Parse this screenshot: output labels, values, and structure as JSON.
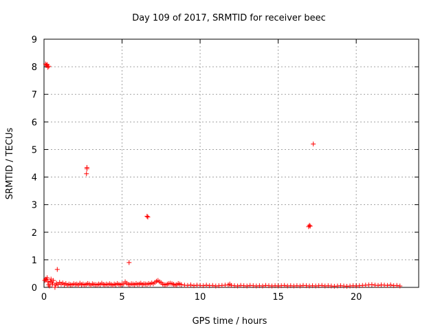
{
  "chart_data": {
    "type": "scatter",
    "title": "Day 109 of 2017, SRMTID for receiver beec",
    "xlabel": "GPS time / hours",
    "ylabel": "SRMTID / TECUs",
    "xlim": [
      0,
      24
    ],
    "ylim": [
      0,
      9
    ],
    "xticks": [
      0,
      5,
      10,
      15,
      20
    ],
    "yticks": [
      0,
      1,
      2,
      3,
      4,
      5,
      6,
      7,
      8,
      9
    ],
    "grid": true,
    "marker": "+",
    "color": "#ff0000",
    "series": [
      {
        "name": "SRMTID",
        "points": [
          [
            0.05,
            0.25
          ],
          [
            0.1,
            0.3
          ],
          [
            0.15,
            0.28
          ],
          [
            0.2,
            0.35
          ],
          [
            0.25,
            0.2
          ],
          [
            0.3,
            0.1
          ],
          [
            0.35,
            0.05
          ],
          [
            0.4,
            0.22
          ],
          [
            0.45,
            0.3
          ],
          [
            0.5,
            0.18
          ],
          [
            0.55,
            0.12
          ],
          [
            0.6,
            0.25
          ],
          [
            0.7,
            0.0
          ],
          [
            0.75,
            0.08
          ],
          [
            0.8,
            0.15
          ],
          [
            0.9,
            0.1
          ],
          [
            1.0,
            0.18
          ],
          [
            1.1,
            0.12
          ],
          [
            1.2,
            0.16
          ],
          [
            1.3,
            0.1
          ],
          [
            1.4,
            0.14
          ],
          [
            1.5,
            0.08
          ],
          [
            1.6,
            0.12
          ],
          [
            1.7,
            0.1
          ],
          [
            1.8,
            0.09
          ],
          [
            1.9,
            0.13
          ],
          [
            2.0,
            0.11
          ],
          [
            2.1,
            0.12
          ],
          [
            2.2,
            0.08
          ],
          [
            2.3,
            0.15
          ],
          [
            2.4,
            0.1
          ],
          [
            2.5,
            0.12
          ],
          [
            2.6,
            0.09
          ],
          [
            2.7,
            0.11
          ],
          [
            2.8,
            0.14
          ],
          [
            2.9,
            0.12
          ],
          [
            3.0,
            0.08
          ],
          [
            3.1,
            0.13
          ],
          [
            3.2,
            0.11
          ],
          [
            3.3,
            0.1
          ],
          [
            3.4,
            0.09
          ],
          [
            3.5,
            0.12
          ],
          [
            3.6,
            0.1
          ],
          [
            3.7,
            0.15
          ],
          [
            3.8,
            0.11
          ],
          [
            3.9,
            0.09
          ],
          [
            4.0,
            0.12
          ],
          [
            4.1,
            0.1
          ],
          [
            4.2,
            0.13
          ],
          [
            4.3,
            0.11
          ],
          [
            4.4,
            0.08
          ],
          [
            4.5,
            0.12
          ],
          [
            4.6,
            0.1
          ],
          [
            4.7,
            0.14
          ],
          [
            4.8,
            0.11
          ],
          [
            4.9,
            0.09
          ],
          [
            5.0,
            0.13
          ],
          [
            5.1,
            0.12
          ],
          [
            5.2,
            0.2
          ],
          [
            5.3,
            0.15
          ],
          [
            5.4,
            0.11
          ],
          [
            5.5,
            0.1
          ],
          [
            5.6,
            0.13
          ],
          [
            5.7,
            0.12
          ],
          [
            5.8,
            0.1
          ],
          [
            5.9,
            0.14
          ],
          [
            6.0,
            0.11
          ],
          [
            6.1,
            0.12
          ],
          [
            6.2,
            0.15
          ],
          [
            6.3,
            0.1
          ],
          [
            6.4,
            0.13
          ],
          [
            6.5,
            0.12
          ],
          [
            6.6,
            0.11
          ],
          [
            6.7,
            0.14
          ],
          [
            6.8,
            0.12
          ],
          [
            6.9,
            0.16
          ],
          [
            7.0,
            0.13
          ],
          [
            7.1,
            0.18
          ],
          [
            7.2,
            0.22
          ],
          [
            7.3,
            0.25
          ],
          [
            7.4,
            0.2
          ],
          [
            7.5,
            0.17
          ],
          [
            7.6,
            0.12
          ],
          [
            7.7,
            0.1
          ],
          [
            7.8,
            0.09
          ],
          [
            7.9,
            0.12
          ],
          [
            8.0,
            0.14
          ],
          [
            8.1,
            0.15
          ],
          [
            8.2,
            0.13
          ],
          [
            8.3,
            0.11
          ],
          [
            8.4,
            0.08
          ],
          [
            8.5,
            0.1
          ],
          [
            8.6,
            0.14
          ],
          [
            8.7,
            0.12
          ],
          [
            8.8,
            0.1
          ],
          [
            9.0,
            0.08
          ],
          [
            9.2,
            0.07
          ],
          [
            9.4,
            0.09
          ],
          [
            9.6,
            0.06
          ],
          [
            9.8,
            0.08
          ],
          [
            10.0,
            0.07
          ],
          [
            10.2,
            0.06
          ],
          [
            10.4,
            0.08
          ],
          [
            10.6,
            0.06
          ],
          [
            10.8,
            0.07
          ],
          [
            11.0,
            0.05
          ],
          [
            11.2,
            0.06
          ],
          [
            11.4,
            0.07
          ],
          [
            11.6,
            0.08
          ],
          [
            11.8,
            0.09
          ],
          [
            11.9,
            0.12
          ],
          [
            12.0,
            0.07
          ],
          [
            12.2,
            0.06
          ],
          [
            12.4,
            0.05
          ],
          [
            12.6,
            0.07
          ],
          [
            12.8,
            0.06
          ],
          [
            13.0,
            0.05
          ],
          [
            13.2,
            0.07
          ],
          [
            13.4,
            0.06
          ],
          [
            13.6,
            0.05
          ],
          [
            13.8,
            0.06
          ],
          [
            14.0,
            0.05
          ],
          [
            14.2,
            0.07
          ],
          [
            14.4,
            0.06
          ],
          [
            14.6,
            0.05
          ],
          [
            14.8,
            0.06
          ],
          [
            15.0,
            0.05
          ],
          [
            15.2,
            0.06
          ],
          [
            15.4,
            0.07
          ],
          [
            15.6,
            0.05
          ],
          [
            15.8,
            0.06
          ],
          [
            16.0,
            0.05
          ],
          [
            16.2,
            0.06
          ],
          [
            16.4,
            0.05
          ],
          [
            16.6,
            0.07
          ],
          [
            16.8,
            0.06
          ],
          [
            17.0,
            0.05
          ],
          [
            17.2,
            0.06
          ],
          [
            17.4,
            0.05
          ],
          [
            17.6,
            0.06
          ],
          [
            17.8,
            0.07
          ],
          [
            18.0,
            0.05
          ],
          [
            18.2,
            0.06
          ],
          [
            18.4,
            0.05
          ],
          [
            18.6,
            0.04
          ],
          [
            18.8,
            0.05
          ],
          [
            19.0,
            0.06
          ],
          [
            19.2,
            0.05
          ],
          [
            19.4,
            0.04
          ],
          [
            19.6,
            0.05
          ],
          [
            19.8,
            0.06
          ],
          [
            20.0,
            0.05
          ],
          [
            20.2,
            0.06
          ],
          [
            20.4,
            0.07
          ],
          [
            20.6,
            0.08
          ],
          [
            20.8,
            0.09
          ],
          [
            21.0,
            0.1
          ],
          [
            21.2,
            0.08
          ],
          [
            21.4,
            0.07
          ],
          [
            21.6,
            0.09
          ],
          [
            21.8,
            0.08
          ],
          [
            22.0,
            0.07
          ],
          [
            22.2,
            0.09
          ],
          [
            22.4,
            0.06
          ],
          [
            22.6,
            0.07
          ],
          [
            22.8,
            0.05
          ],
          [
            0.1,
            8.1
          ],
          [
            0.15,
            8.05
          ],
          [
            0.2,
            8.08
          ],
          [
            0.25,
            7.98
          ],
          [
            0.3,
            8.02
          ],
          [
            0.85,
            0.65
          ],
          [
            2.75,
            4.35
          ],
          [
            2.75,
            4.3
          ],
          [
            2.72,
            4.12
          ],
          [
            5.45,
            0.9
          ],
          [
            6.6,
            2.58
          ],
          [
            6.65,
            2.55
          ],
          [
            16.95,
            2.2
          ],
          [
            17.0,
            2.25
          ],
          [
            17.05,
            2.22
          ],
          [
            17.25,
            5.2
          ]
        ]
      }
    ]
  }
}
